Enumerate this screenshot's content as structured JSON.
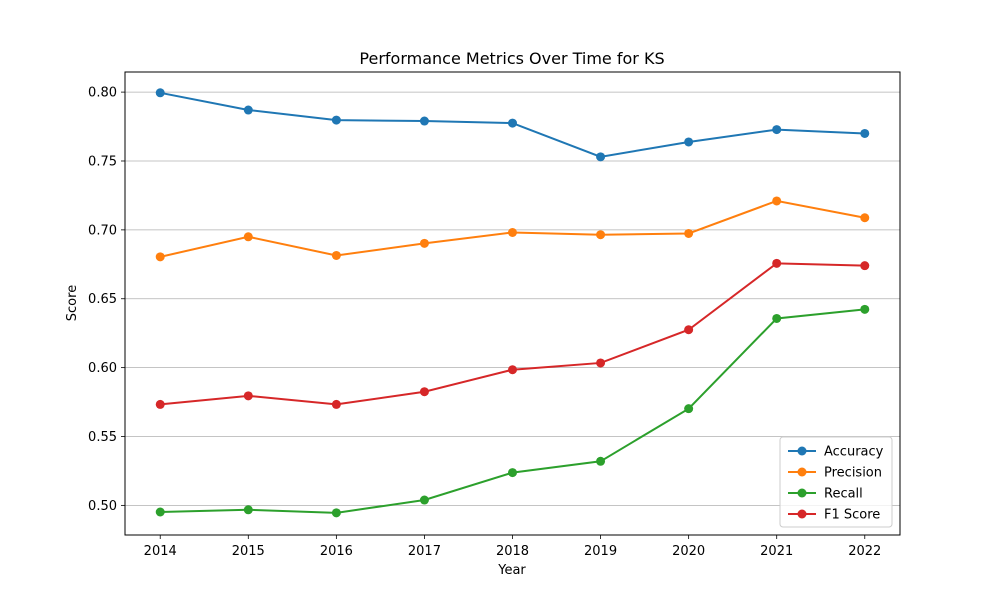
{
  "chart_data": {
    "type": "line",
    "title": "Performance Metrics Over Time for KS",
    "xlabel": "Year",
    "ylabel": "Score",
    "x": [
      2014,
      2015,
      2016,
      2017,
      2018,
      2019,
      2020,
      2021,
      2022
    ],
    "x_tick_labels": [
      "2014",
      "2015",
      "2016",
      "2017",
      "2018",
      "2019",
      "2020",
      "2021",
      "2022"
    ],
    "y_ticks": [
      0.5,
      0.55,
      0.6,
      0.65,
      0.7,
      0.75,
      0.8
    ],
    "y_tick_labels": [
      "0.50",
      "0.55",
      "0.60",
      "0.65",
      "0.70",
      "0.75",
      "0.80"
    ],
    "xlim": [
      2013.6,
      2022.4
    ],
    "ylim": [
      0.4785,
      0.8146
    ],
    "grid": "horizontal",
    "legend_position": "lower-right",
    "series": [
      {
        "name": "Accuracy",
        "color": "#1f77b4",
        "values": [
          0.7995,
          0.787,
          0.7797,
          0.779,
          0.7775,
          0.753,
          0.7638,
          0.7728,
          0.77
        ]
      },
      {
        "name": "Precision",
        "color": "#ff7f0e",
        "values": [
          0.6804,
          0.695,
          0.6814,
          0.6902,
          0.6981,
          0.6965,
          0.6974,
          0.721,
          0.7088
        ]
      },
      {
        "name": "Recall",
        "color": "#2ca02c",
        "values": [
          0.4952,
          0.4968,
          0.4946,
          0.5039,
          0.5238,
          0.532,
          0.5702,
          0.6357,
          0.6423
        ]
      },
      {
        "name": "F1 Score",
        "color": "#d62728",
        "values": [
          0.5733,
          0.5795,
          0.5733,
          0.5825,
          0.5985,
          0.6034,
          0.6275,
          0.6757,
          0.674
        ]
      }
    ]
  }
}
